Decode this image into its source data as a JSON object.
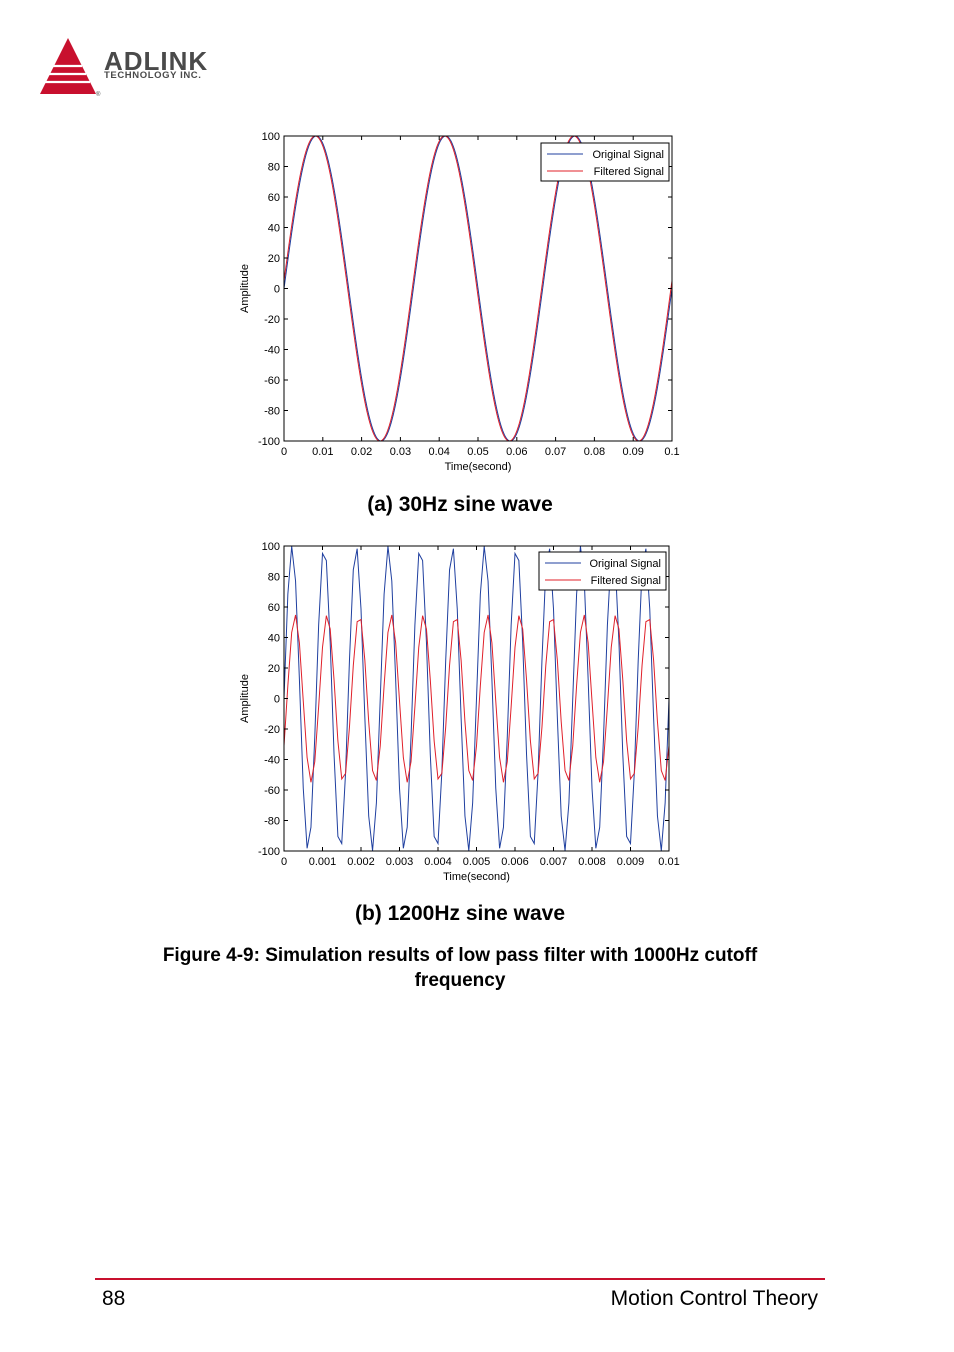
{
  "header": {
    "brand": "ADLINK",
    "tagline": "TECHNOLOGY INC.",
    "logo_color": "#c8102e"
  },
  "chart_data": [
    {
      "type": "line",
      "title": "",
      "xlabel": "Time(second)",
      "ylabel": "Amplitude",
      "xlim": [
        0,
        0.1
      ],
      "ylim": [
        -100,
        100
      ],
      "xticks": [
        "0",
        "0.01",
        "0.02",
        "0.03",
        "0.04",
        "0.05",
        "0.06",
        "0.07",
        "0.08",
        "0.09",
        "0.1"
      ],
      "yticks": [
        "100",
        "80",
        "60",
        "40",
        "20",
        "0",
        "-20",
        "-40",
        "-60",
        "-80",
        "-100"
      ],
      "legend": {
        "placement": "top-right",
        "entries": [
          "Original Signal",
          "Filtered  Signal"
        ]
      },
      "grid": false,
      "series": [
        {
          "name": "Original Signal",
          "color": "#1f3f9f",
          "frequency_hz": 30,
          "amplitude": 100,
          "phase": 0
        },
        {
          "name": "Filtered  Signal",
          "color": "#e0202a",
          "frequency_hz": 30,
          "amplitude": 100,
          "phase": 0.05
        }
      ]
    },
    {
      "type": "line",
      "title": "",
      "xlabel": "Time(second)",
      "ylabel": "Amplitude",
      "xlim": [
        0,
        0.01
      ],
      "ylim": [
        -100,
        100
      ],
      "xticks": [
        "0",
        "0.001",
        "0.002",
        "0.003",
        "0.004",
        "0.005",
        "0.006",
        "0.007",
        "0.008",
        "0.009",
        "0.01"
      ],
      "yticks": [
        "100",
        "80",
        "60",
        "40",
        "20",
        "0",
        "-20",
        "-40",
        "-60",
        "-80",
        "-100"
      ],
      "legend": {
        "placement": "top-right",
        "entries": [
          "Original Signal",
          "Filtered  Signal"
        ]
      },
      "grid": false,
      "series": [
        {
          "name": "Original Signal",
          "color": "#1f3f9f",
          "frequency_hz": 1200,
          "amplitude": 100,
          "sample_step": 0.0001
        },
        {
          "name": "Filtered  Signal",
          "color": "#e0202a",
          "frequency_hz": 1200,
          "amplitude": 55,
          "phase_lag": -0.6,
          "sample_step": 0.0001
        }
      ]
    }
  ],
  "captions": {
    "a": "(a) 30Hz sine wave",
    "b": "(b) 1200Hz sine wave",
    "figure_line1": "Figure 4-9: Simulation results of low pass filter with 1000Hz cutoff",
    "figure_line2": "frequency"
  },
  "footer": {
    "page_number": "88",
    "section": "Motion Control Theory",
    "rule_color": "#c8102e"
  }
}
